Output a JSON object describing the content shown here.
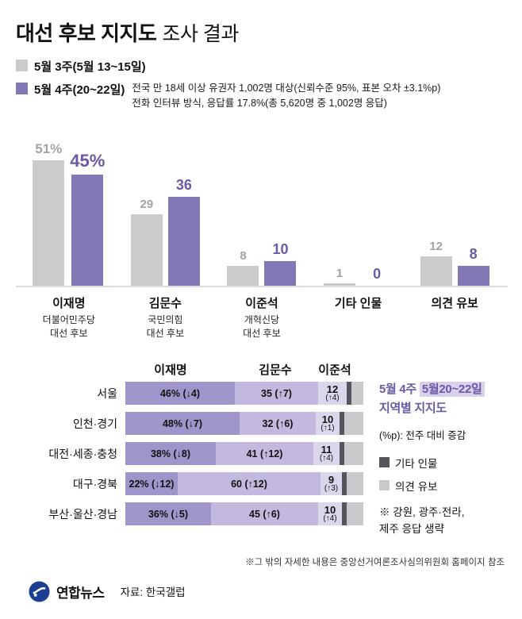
{
  "title": {
    "bold": "대선 후보 지지도",
    "regular": "조사 결과"
  },
  "survey_legend": {
    "week3_label": "5월 3주(5월 13~15일)",
    "week4_label": "5월 4주(20~22일)",
    "note_line1": "전국 만 18세 이상 유권자 1,002명 대상(신뢰수준 95%, 표본 오차 ±3.1%p)",
    "note_line2": "전화 인터뷰 방식, 응답률 17.8%(총 5,620명 중 1,002명 응답)"
  },
  "colors": {
    "gray_series": "#cbcbcb",
    "purple_series": "#8477b5",
    "purple_text": "#6a5aa5",
    "lee_segment": "#a095ca",
    "kim_segment": "#c3b9de",
    "jun_segment": "#dcd6ec",
    "etc_segment": "#55555d",
    "hold_segment": "#c9c9cc"
  },
  "chart_data": [
    {
      "type": "bar",
      "title": "대선 후보 지지도 조사 결과",
      "categories": [
        "이재명",
        "김문수",
        "이준석",
        "기타 인물",
        "의견 유보"
      ],
      "category_sublabels": [
        [
          "더불어민주당",
          "대선 후보"
        ],
        [
          "국민의힘",
          "대선 후보"
        ],
        [
          "개혁신당",
          "대선 후보"
        ],
        [],
        []
      ],
      "series": [
        {
          "name": "5월 3주(5월 13~15일)",
          "values": [
            51,
            29,
            8,
            1,
            12
          ],
          "labels": [
            "51%",
            "29",
            "8",
            "1",
            "12"
          ]
        },
        {
          "name": "5월 4주(20~22일)",
          "values": [
            45,
            36,
            10,
            0,
            8
          ],
          "labels": [
            "45%",
            "36",
            "10",
            "0",
            "8"
          ]
        }
      ],
      "unit": "%",
      "ylim": [
        0,
        55
      ],
      "grid": false,
      "legend_position": "top-left"
    },
    {
      "type": "stacked-bar-horizontal",
      "title": "5월 4주 5월20~22일 지역별 지지도",
      "columns": [
        "이재명",
        "김문수",
        "이준석"
      ],
      "rows": [
        {
          "region": "서울",
          "lee": 46,
          "lee_label": "46% (↓4)",
          "kim": 35,
          "kim_label": "35 (↑7)",
          "jun": 12,
          "jun_label": "12",
          "jun_delta": "(↑4)",
          "etc": 2,
          "hold": 5
        },
        {
          "region": "인천·경기",
          "lee": 48,
          "lee_label": "48% (↓7)",
          "kim": 32,
          "kim_label": "32 (↑6)",
          "jun": 10,
          "jun_label": "10",
          "jun_delta": "(↑1)",
          "etc": 2,
          "hold": 8
        },
        {
          "region": "대전·세종·충청",
          "lee": 38,
          "lee_label": "38% (↓8)",
          "kim": 41,
          "kim_label": "41 (↑12)",
          "jun": 11,
          "jun_label": "11",
          "jun_delta": "(↑4)",
          "etc": 2,
          "hold": 8
        },
        {
          "region": "대구·경북",
          "lee": 22,
          "lee_label": "22% (↓12)",
          "kim": 60,
          "kim_label": "60 (↑12)",
          "jun": 9,
          "jun_label": "9",
          "jun_delta": "(↑3)",
          "etc": 2,
          "hold": 7
        },
        {
          "region": "부산·울산·경남",
          "lee": 36,
          "lee_label": "36% (↓5)",
          "kim": 45,
          "kim_label": "45 (↑6)",
          "jun": 10,
          "jun_label": "10",
          "jun_delta": "(↑4)",
          "etc": 2,
          "hold": 7
        }
      ]
    }
  ],
  "side_panel": {
    "title_week": "5월 4주",
    "title_date": "5월20~22일",
    "title_line2": "지역별 지지도",
    "pp_note": "(%p): 전주 대비 증감",
    "legend_etc": "기타 인물",
    "legend_hold": "의견 유보",
    "exclusion_line1": "※ 강원, 광주·전라,",
    "exclusion_line2": "제주 응답 생략"
  },
  "footer": {
    "detail_note": "※그 밖의 자세한 내용은 중앙선거여론조사심의위원회 홈페이지 참조",
    "agency": "연합뉴스",
    "source": "자료: 한국갤럽"
  }
}
